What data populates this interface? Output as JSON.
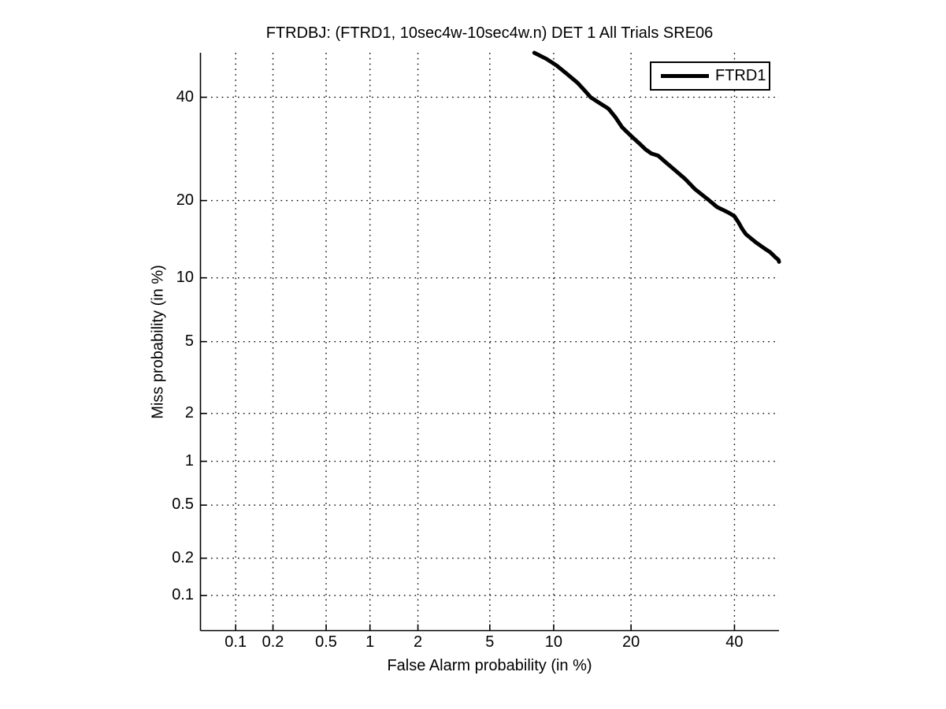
{
  "figure": {
    "background": "#ffffff"
  },
  "chart_data": {
    "type": "line",
    "subtype": "DET-curve",
    "title": "FTRDBJ: (FTRD1, 10sec4w-10sec4w.n) DET 1 All Trials SRE06",
    "xlabel": "False Alarm probability (in %)",
    "ylabel": "Miss probability (in %)",
    "axis_scale": "normal-deviate (probit), both axes",
    "xlim": [
      0.05,
      50
    ],
    "ylim": [
      0.05,
      50
    ],
    "xticks": [
      0.1,
      0.2,
      0.5,
      1,
      2,
      5,
      10,
      20,
      40
    ],
    "xtick_labels": [
      "0.1",
      "0.2",
      "0.5",
      "1",
      "2",
      "5",
      "10",
      "20",
      "40"
    ],
    "yticks": [
      0.1,
      0.2,
      0.5,
      1,
      2,
      5,
      10,
      20,
      40
    ],
    "ytick_labels": [
      "0.1",
      "0.2",
      "0.5",
      "1",
      "2",
      "5",
      "10",
      "20",
      "40"
    ],
    "grid": "dotted",
    "colors": {
      "line": "#000000",
      "grid": "#000000",
      "axis": "#000000",
      "background": "#ffffff"
    },
    "legend": {
      "position": "top-right",
      "entries": [
        {
          "label": "FTRD1",
          "color": "#000000"
        }
      ]
    },
    "series": [
      {
        "name": "FTRD1",
        "points_fa_miss_percent": [
          [
            8.2,
            50.0
          ],
          [
            9.3,
            48.6
          ],
          [
            10.3,
            47.1
          ],
          [
            11.4,
            45.2
          ],
          [
            12.6,
            43.2
          ],
          [
            13.4,
            41.6
          ],
          [
            14.2,
            40.0
          ],
          [
            15.3,
            38.8
          ],
          [
            16.6,
            37.5
          ],
          [
            17.6,
            35.7
          ],
          [
            18.6,
            33.6
          ],
          [
            19.2,
            32.8
          ],
          [
            20.0,
            31.8
          ],
          [
            21.6,
            30.0
          ],
          [
            22.4,
            29.1
          ],
          [
            23.4,
            28.3
          ],
          [
            24.6,
            27.9
          ],
          [
            25.9,
            26.7
          ],
          [
            27.7,
            25.2
          ],
          [
            29.7,
            23.6
          ],
          [
            31.6,
            21.9
          ],
          [
            33.0,
            21.0
          ],
          [
            34.6,
            20.0
          ],
          [
            36.2,
            19.0
          ],
          [
            37.6,
            18.5
          ],
          [
            38.8,
            18.1
          ],
          [
            40.0,
            17.6
          ],
          [
            40.9,
            16.7
          ],
          [
            41.7,
            15.8
          ],
          [
            42.5,
            15.1
          ],
          [
            43.3,
            14.7
          ],
          [
            44.8,
            14.0
          ],
          [
            46.6,
            13.3
          ],
          [
            48.0,
            12.8
          ],
          [
            49.2,
            12.2
          ],
          [
            49.9,
            11.9
          ],
          [
            50.0,
            11.7
          ]
        ]
      }
    ]
  }
}
